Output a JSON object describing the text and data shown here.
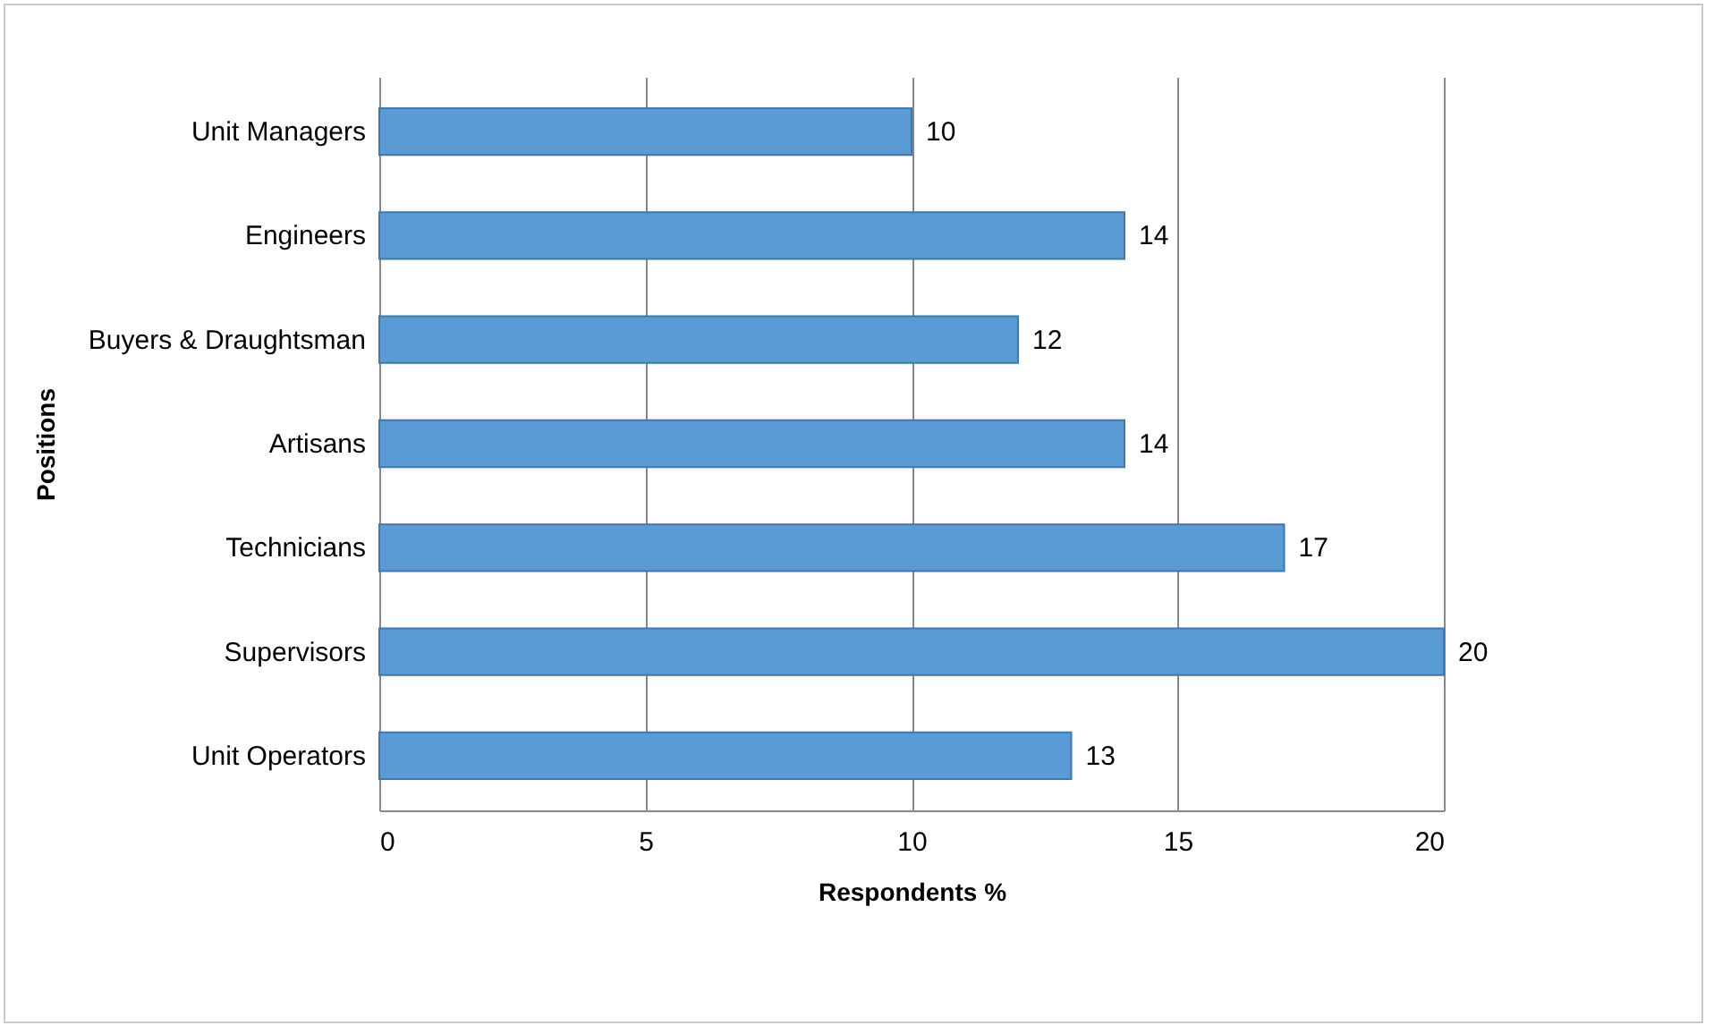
{
  "chart_data": {
    "type": "bar",
    "orientation": "horizontal",
    "categories": [
      "Unit Managers",
      "Engineers",
      "Buyers & Draughtsman",
      "Artisans",
      "Technicians",
      "Supervisors",
      "Unit Operators"
    ],
    "values": [
      10,
      14,
      12,
      14,
      17,
      20,
      13
    ],
    "color": "#5b9bd5",
    "xlim": [
      0,
      20
    ],
    "xticks": [
      0,
      5,
      10,
      15,
      20
    ],
    "grid": "x",
    "data_labels": true,
    "xlabel": "Respondents %",
    "ylabel": "Positions"
  }
}
